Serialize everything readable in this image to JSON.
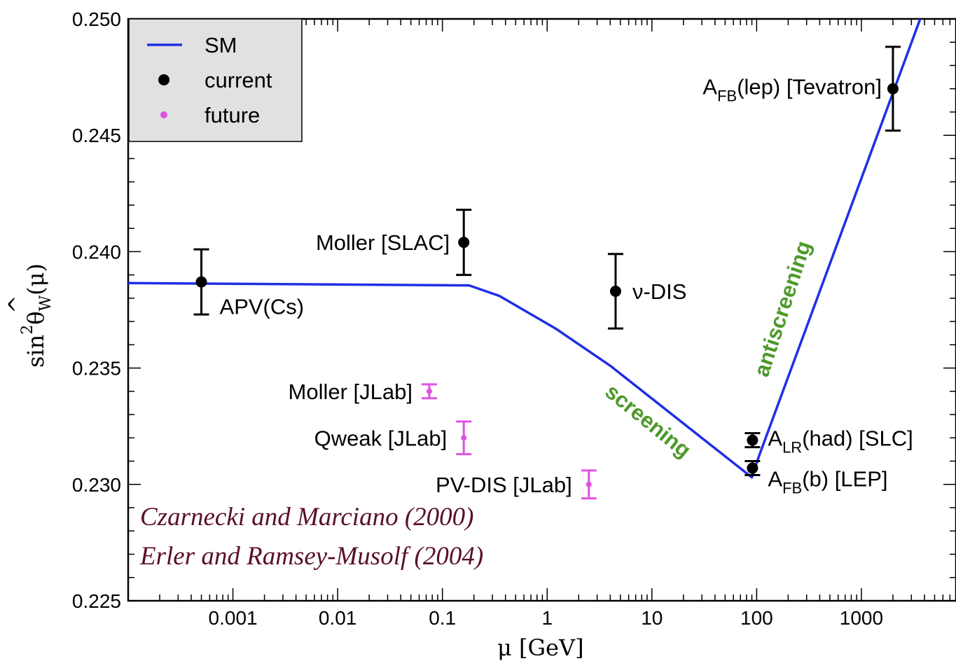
{
  "chart_data": {
    "type": "scatter",
    "xlabel": "μ [GeV]",
    "ylabel": "sin²θ̂W(μ)",
    "ylabel_parts": {
      "sin": "sin",
      "sup": "2",
      "theta": "θ",
      "hat": "^",
      "sub": "W",
      "arg": "(μ)"
    },
    "xscale": "log",
    "xlim": [
      0.0001,
      8000
    ],
    "ylim": [
      0.225,
      0.25
    ],
    "x_tick_labels": [
      "0.001",
      "0.01",
      "0.1",
      "1",
      "10",
      "100",
      "1000"
    ],
    "x_tick_values": [
      0.001,
      0.01,
      0.1,
      1,
      10,
      100,
      1000
    ],
    "y_tick_labels": [
      "0.225",
      "0.230",
      "0.235",
      "0.240",
      "0.245",
      "0.250"
    ],
    "y_tick_values": [
      0.225,
      0.23,
      0.235,
      0.24,
      0.245,
      0.25
    ],
    "legend": {
      "position": "top-left",
      "entries": [
        {
          "label": "SM",
          "kind": "line",
          "color": "#1f2fe6"
        },
        {
          "label": "current",
          "kind": "point",
          "color": "#000000"
        },
        {
          "label": "future",
          "kind": "point",
          "color": "#e052e0"
        }
      ]
    },
    "series": [
      {
        "name": "SM",
        "kind": "line",
        "color": "#1f2fe6",
        "points": [
          [
            0.0001,
            0.23865
          ],
          [
            0.18,
            0.23855
          ],
          [
            0.35,
            0.2381
          ],
          [
            1.2,
            0.2367
          ],
          [
            4,
            0.2351
          ],
          [
            90,
            0.2303
          ],
          [
            105,
            0.2312
          ],
          [
            4000,
            0.2505
          ]
        ]
      },
      {
        "name": "current",
        "kind": "errorbar",
        "color": "#000000",
        "points": [
          {
            "label": "APV(Cs)",
            "x": 0.0005,
            "y": 0.2387,
            "err": 0.0014
          },
          {
            "label": "Moller [SLAC]",
            "x": 0.16,
            "y": 0.2404,
            "err": 0.0014
          },
          {
            "label": "ν-DIS",
            "x": 4.5,
            "y": 0.2383,
            "err": 0.0016
          },
          {
            "label": "A_LR(had) [SLC]",
            "x": 91.2,
            "y": 0.2319,
            "err": 0.0003
          },
          {
            "label": "A_FB(b) [LEP]",
            "x": 91.2,
            "y": 0.2307,
            "err": 0.0003
          },
          {
            "label": "A_FB(lep) [Tevatron]",
            "x": 2000,
            "y": 0.247,
            "err": 0.0018
          }
        ]
      },
      {
        "name": "future",
        "kind": "errorbar",
        "color": "#e052e0",
        "points": [
          {
            "label": "Moller [JLab]",
            "x": 0.075,
            "y": 0.234,
            "err": 0.0003
          },
          {
            "label": "Qweak [JLab]",
            "x": 0.16,
            "y": 0.232,
            "err": 0.0007
          },
          {
            "label": "PV-DIS [JLab]",
            "x": 2.5,
            "y": 0.23,
            "err": 0.0006
          }
        ]
      }
    ],
    "annotations": [
      {
        "text": "screening",
        "color": "#4c9a2a"
      },
      {
        "text": "antiscreening",
        "color": "#4c9a2a"
      }
    ],
    "credits": [
      "Czarnecki and Marciano (2000)",
      "Erler and Ramsey-Musolf (2004)"
    ]
  }
}
